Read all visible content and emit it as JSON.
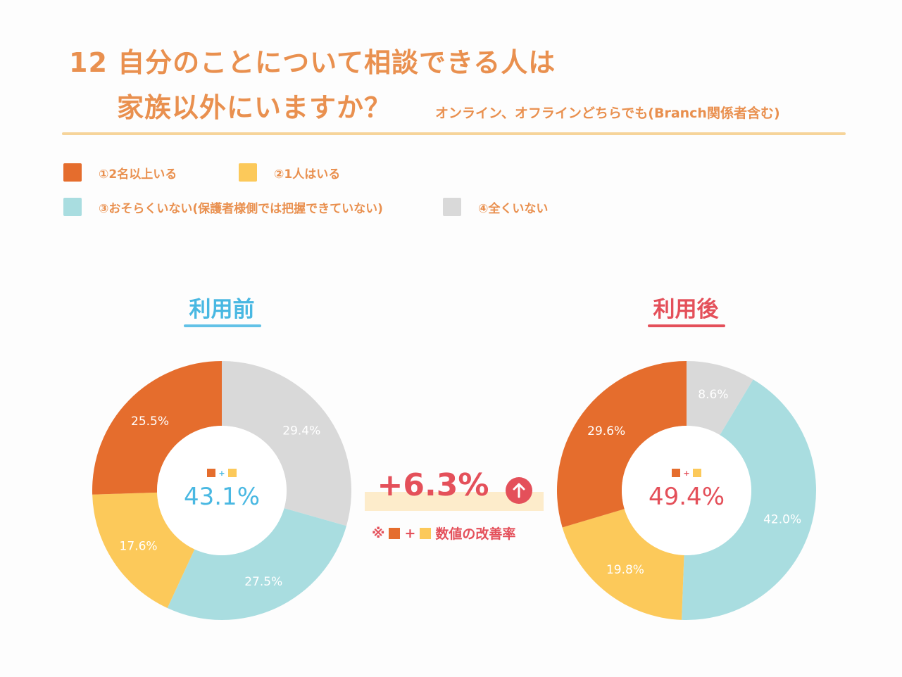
{
  "header": {
    "title_line1": "12 自分のことについて相談できる人は",
    "title_line2": "家族以外にいますか？",
    "subtitle": "オンライン、オフラインどちらでも(Branch関係者含む)"
  },
  "colors": {
    "title": "#e9904f",
    "rule": "#f6d49a",
    "orange": "#e56d2d",
    "yellow": "#fcc95a",
    "teal": "#a9dde0",
    "gray": "#d9d9d9",
    "before_accent": "#49b8e2",
    "after_accent": "#e4505a"
  },
  "legend": [
    {
      "label": "①2名以上いる",
      "color": "#e56d2d"
    },
    {
      "label": "②1人はいる",
      "color": "#fcc95a"
    },
    {
      "label": "③おそらくいない(保護者様側では把握できていない)",
      "color": "#a9dde0"
    },
    {
      "label": "④全くいない",
      "color": "#d9d9d9"
    }
  ],
  "panels": {
    "before": {
      "title": "利用前",
      "center_value": "43.1%",
      "plus": "+"
    },
    "after": {
      "title": "利用後",
      "center_value": "49.4%",
      "plus": "+"
    }
  },
  "improvement": {
    "value": "+6.3%",
    "note_prefix": "※",
    "note_plus": "+",
    "note_text": "数値の改善率"
  },
  "chart_data": [
    {
      "type": "pie",
      "title": "利用前",
      "categories": [
        "①2名以上いる",
        "②1人はいる",
        "③おそらくいない(保護者様側では把握できていない)",
        "④全くいない"
      ],
      "values": [
        25.5,
        17.6,
        27.5,
        29.4
      ],
      "labels": [
        "25.5%",
        "17.6%",
        "27.5%",
        "29.4%"
      ],
      "center_label": "43.1%",
      "order_clockwise_from_top": [
        3,
        2,
        1,
        0
      ]
    },
    {
      "type": "pie",
      "title": "利用後",
      "categories": [
        "①2名以上いる",
        "②1人はいる",
        "③おそらくいない(保護者様側では把握できていない)",
        "④全くいない"
      ],
      "values": [
        29.6,
        19.8,
        42.0,
        8.6
      ],
      "labels": [
        "29.6%",
        "19.8%",
        "42.0%",
        "8.6%"
      ],
      "center_label": "49.4%",
      "order_clockwise_from_top": [
        3,
        2,
        1,
        0
      ]
    }
  ]
}
